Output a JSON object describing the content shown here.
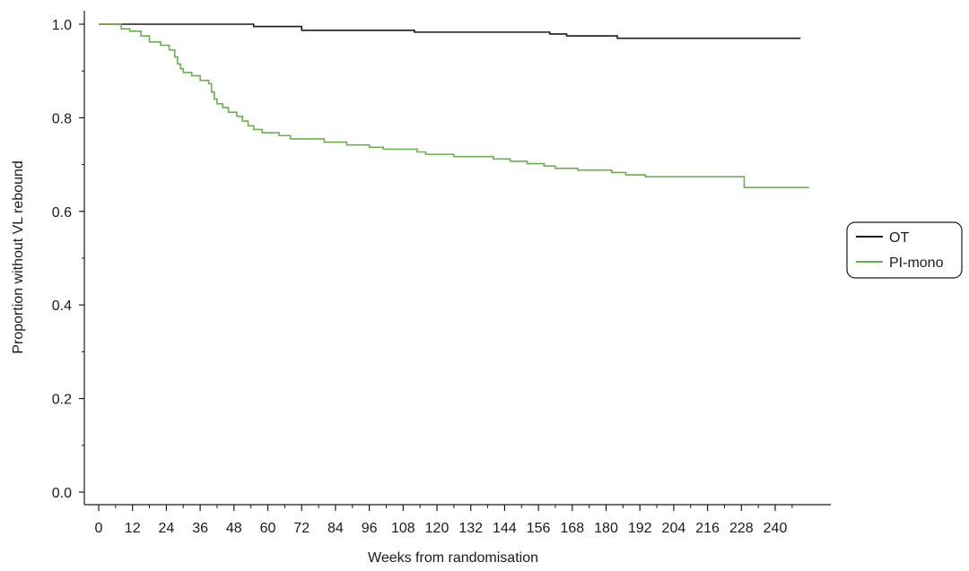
{
  "chart_data": {
    "type": "line",
    "xlabel": "Weeks from randomisation",
    "ylabel": "Proportion without VL rebound",
    "xlim": [
      0,
      252
    ],
    "ylim": [
      0.0,
      1.0
    ],
    "x_ticks": [
      0,
      12,
      24,
      36,
      48,
      60,
      72,
      84,
      96,
      108,
      120,
      132,
      144,
      156,
      168,
      180,
      192,
      204,
      216,
      228,
      240
    ],
    "y_ticks": [
      0.0,
      0.2,
      0.4,
      0.6,
      0.8,
      1.0
    ],
    "y_tick_labels": [
      "0.0",
      "0.2",
      "0.4",
      "0.6",
      "0.8",
      "1.0"
    ],
    "grid": false,
    "legend_position": "right",
    "series": [
      {
        "name": "OT",
        "color": "#1a1a1a",
        "points": [
          [
            0,
            1.0
          ],
          [
            55,
            1.0
          ],
          [
            55,
            0.995
          ],
          [
            72,
            0.995
          ],
          [
            72,
            0.987
          ],
          [
            112,
            0.987
          ],
          [
            112,
            0.983
          ],
          [
            160,
            0.983
          ],
          [
            160,
            0.979
          ],
          [
            166,
            0.979
          ],
          [
            166,
            0.975
          ],
          [
            184,
            0.975
          ],
          [
            184,
            0.97
          ],
          [
            249,
            0.97
          ]
        ]
      },
      {
        "name": "PI-mono",
        "color": "#6ab04c",
        "points": [
          [
            0,
            1.0
          ],
          [
            8,
            1.0
          ],
          [
            8,
            0.99
          ],
          [
            11,
            0.99
          ],
          [
            11,
            0.985
          ],
          [
            15,
            0.985
          ],
          [
            15,
            0.975
          ],
          [
            18,
            0.975
          ],
          [
            18,
            0.962
          ],
          [
            22,
            0.962
          ],
          [
            22,
            0.955
          ],
          [
            25,
            0.955
          ],
          [
            25,
            0.945
          ],
          [
            27,
            0.945
          ],
          [
            27,
            0.93
          ],
          [
            28,
            0.93
          ],
          [
            28,
            0.915
          ],
          [
            29,
            0.915
          ],
          [
            29,
            0.905
          ],
          [
            30,
            0.905
          ],
          [
            30,
            0.897
          ],
          [
            33,
            0.897
          ],
          [
            33,
            0.89
          ],
          [
            36,
            0.89
          ],
          [
            36,
            0.88
          ],
          [
            39,
            0.88
          ],
          [
            39,
            0.873
          ],
          [
            40,
            0.873
          ],
          [
            40,
            0.855
          ],
          [
            41,
            0.855
          ],
          [
            41,
            0.84
          ],
          [
            42,
            0.84
          ],
          [
            42,
            0.83
          ],
          [
            44,
            0.83
          ],
          [
            44,
            0.822
          ],
          [
            46,
            0.822
          ],
          [
            46,
            0.812
          ],
          [
            49,
            0.812
          ],
          [
            49,
            0.803
          ],
          [
            51,
            0.803
          ],
          [
            51,
            0.793
          ],
          [
            53,
            0.793
          ],
          [
            53,
            0.783
          ],
          [
            55,
            0.783
          ],
          [
            55,
            0.775
          ],
          [
            58,
            0.775
          ],
          [
            58,
            0.768
          ],
          [
            64,
            0.768
          ],
          [
            64,
            0.762
          ],
          [
            68,
            0.762
          ],
          [
            68,
            0.755
          ],
          [
            80,
            0.755
          ],
          [
            80,
            0.748
          ],
          [
            88,
            0.748
          ],
          [
            88,
            0.742
          ],
          [
            96,
            0.742
          ],
          [
            96,
            0.737
          ],
          [
            101,
            0.737
          ],
          [
            101,
            0.733
          ],
          [
            113,
            0.733
          ],
          [
            113,
            0.727
          ],
          [
            116,
            0.727
          ],
          [
            116,
            0.722
          ],
          [
            126,
            0.722
          ],
          [
            126,
            0.717
          ],
          [
            140,
            0.717
          ],
          [
            140,
            0.712
          ],
          [
            146,
            0.712
          ],
          [
            146,
            0.707
          ],
          [
            152,
            0.707
          ],
          [
            152,
            0.702
          ],
          [
            158,
            0.702
          ],
          [
            158,
            0.697
          ],
          [
            162,
            0.697
          ],
          [
            162,
            0.692
          ],
          [
            170,
            0.692
          ],
          [
            170,
            0.688
          ],
          [
            182,
            0.688
          ],
          [
            182,
            0.683
          ],
          [
            187,
            0.683
          ],
          [
            187,
            0.678
          ],
          [
            194,
            0.678
          ],
          [
            194,
            0.674
          ],
          [
            229,
            0.674
          ],
          [
            229,
            0.651
          ],
          [
            252,
            0.651
          ]
        ]
      }
    ]
  }
}
